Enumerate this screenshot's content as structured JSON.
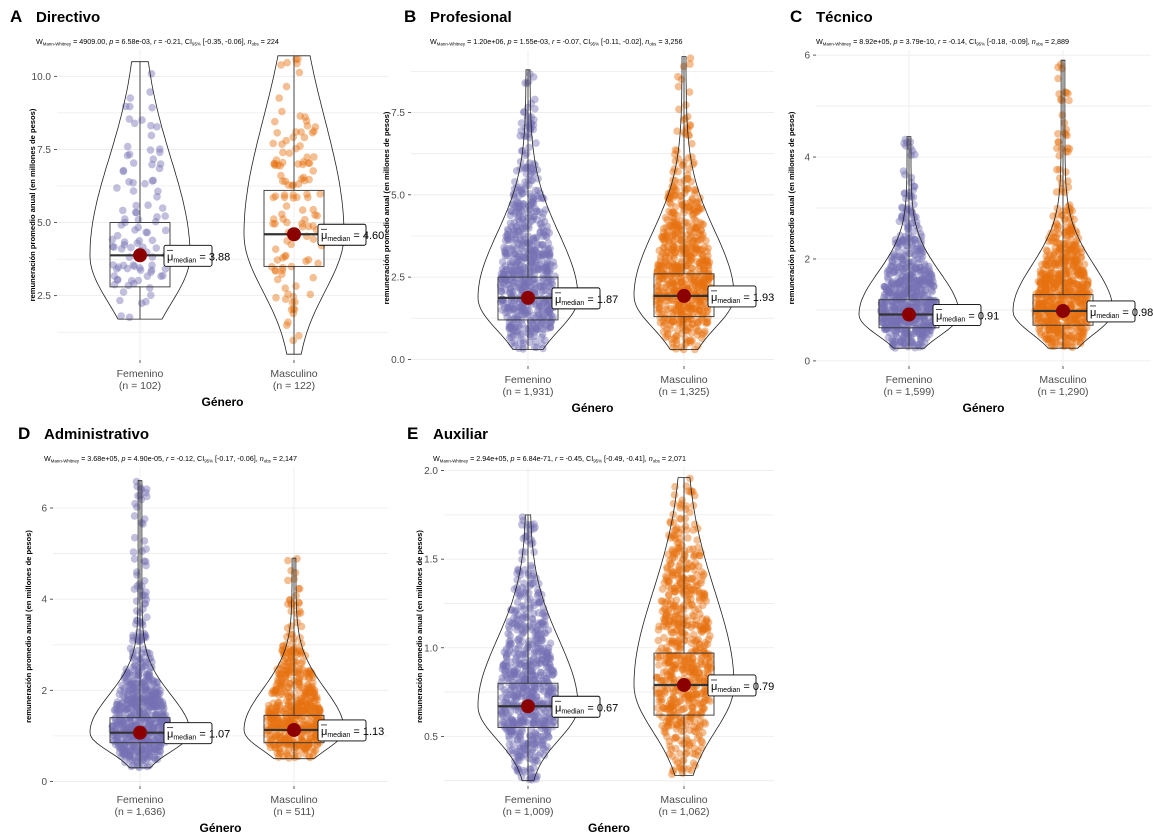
{
  "colors": {
    "femenino": "#7570B3",
    "masculino": "#E7700F",
    "median_point": "#8B0000",
    "grid": "#EBEBEB"
  },
  "chart_data": [
    {
      "type": "violin-box-scatter",
      "letter": "A",
      "title": "Directivo",
      "stats": {
        "prefix": "W",
        "test_sub": "Mann-Whitney",
        "W": "4909.00",
        "p": "6.58e-03",
        "r": "-0.21",
        "ci": "[-0.35, -0.06]",
        "n": "224"
      },
      "xlabel": "Género",
      "ylabel": "remuneración promedio anual (en millones de pesos)",
      "ylim": [
        0.3,
        10.9
      ],
      "yticks": [
        2.5,
        5.0,
        7.5,
        10.0
      ],
      "ytick_labels": [
        "2.5",
        "5.0",
        "7.5",
        "10.0"
      ],
      "groups": [
        {
          "name": "Femenino",
          "n_label": "(n = 102)",
          "n": 102,
          "median": 3.88,
          "median_label": "3.88",
          "q1": 2.8,
          "q3": 5.0,
          "min": 1.7,
          "max": 10.5
        },
        {
          "name": "Masculino",
          "n_label": "(n = 122)",
          "n": 122,
          "median": 4.6,
          "median_label": "4.60",
          "q1": 3.5,
          "q3": 6.1,
          "min": 0.5,
          "max": 10.7
        }
      ]
    },
    {
      "type": "violin-box-scatter",
      "letter": "B",
      "title": "Profesional",
      "stats": {
        "prefix": "W",
        "test_sub": "Mann-Whitney",
        "W": "1.20e+06",
        "p": "1.55e-03",
        "r": "-0.07",
        "ci": "[-0.11, -0.02]",
        "n": "3,256"
      },
      "xlabel": "Género",
      "ylabel": "remuneración promedio anual (en millones de pesos)",
      "ylim": [
        -0.2,
        9.4
      ],
      "yticks": [
        0.0,
        2.5,
        5.0,
        7.5
      ],
      "ytick_labels": [
        "0.0",
        "2.5",
        "5.0",
        "7.5"
      ],
      "groups": [
        {
          "name": "Femenino",
          "n_label": "(n = 1,931)",
          "n": 1931,
          "median": 1.87,
          "median_label": "1.87",
          "q1": 1.2,
          "q3": 2.5,
          "min": 0.3,
          "max": 8.8
        },
        {
          "name": "Masculino",
          "n_label": "(n = 1,325)",
          "n": 1325,
          "median": 1.93,
          "median_label": "1.93",
          "q1": 1.3,
          "q3": 2.6,
          "min": 0.3,
          "max": 9.2
        }
      ]
    },
    {
      "type": "violin-box-scatter",
      "letter": "C",
      "title": "Técnico",
      "stats": {
        "prefix": "W",
        "test_sub": "Mann-Whitney",
        "W": "8.92e+05",
        "p": "3.79e-10",
        "r": "-0.14",
        "ci": "[-0.18, -0.09]",
        "n": "2,889"
      },
      "xlabel": "Género",
      "ylabel": "remuneración promedio anual (en millones de pesos)",
      "ylim": [
        -0.1,
        6.1
      ],
      "yticks": [
        0,
        2,
        4,
        6
      ],
      "ytick_labels": [
        "0",
        "2",
        "4",
        "6"
      ],
      "groups": [
        {
          "name": "Femenino",
          "n_label": "(n = 1,599)",
          "n": 1599,
          "median": 0.91,
          "median_label": "0.91",
          "q1": 0.65,
          "q3": 1.2,
          "min": 0.25,
          "max": 4.4
        },
        {
          "name": "Masculino",
          "n_label": "(n = 1,290)",
          "n": 1290,
          "median": 0.98,
          "median_label": "0.98",
          "q1": 0.7,
          "q3": 1.3,
          "min": 0.25,
          "max": 5.9
        }
      ]
    },
    {
      "type": "violin-box-scatter",
      "letter": "D",
      "title": "Administrativo",
      "stats": {
        "prefix": "W",
        "test_sub": "Mann-Whitney",
        "W": "3.68e+05",
        "p": "4.90e-05",
        "r": "-0.12",
        "ci": "[-0.17, -0.06]",
        "n": "2,147"
      },
      "xlabel": "Género",
      "ylabel": "remuneración promedio anual (en millones de pesos)",
      "ylim": [
        -0.1,
        6.9
      ],
      "yticks": [
        0,
        2,
        4,
        6
      ],
      "ytick_labels": [
        "0",
        "2",
        "4",
        "6"
      ],
      "groups": [
        {
          "name": "Femenino",
          "n_label": "(n = 1,636)",
          "n": 1636,
          "median": 1.07,
          "median_label": "1.07",
          "q1": 0.85,
          "q3": 1.4,
          "min": 0.3,
          "max": 6.6
        },
        {
          "name": "Masculino",
          "n_label": "(n = 511)",
          "n": 511,
          "median": 1.13,
          "median_label": "1.13",
          "q1": 0.85,
          "q3": 1.45,
          "min": 0.5,
          "max": 4.9
        }
      ]
    },
    {
      "type": "violin-box-scatter",
      "letter": "E",
      "title": "Auxiliar",
      "stats": {
        "prefix": "W",
        "test_sub": "Mann-Whitney",
        "W": "2.94e+05",
        "p": "6.84e-71",
        "r": "-0.45",
        "ci": "[-0.49, -0.41]",
        "n": "2,071"
      },
      "xlabel": "Género",
      "ylabel": "remuneración promedio anual (en millones de pesos)",
      "ylim": [
        0.22,
        2.02
      ],
      "yticks": [
        0.5,
        1.0,
        1.5,
        2.0
      ],
      "ytick_labels": [
        "0.5",
        "1.0",
        "1.5",
        "2.0"
      ],
      "groups": [
        {
          "name": "Femenino",
          "n_label": "(n = 1,009)",
          "n": 1009,
          "median": 0.67,
          "median_label": "0.67",
          "q1": 0.55,
          "q3": 0.8,
          "min": 0.25,
          "max": 1.75
        },
        {
          "name": "Masculino",
          "n_label": "(n = 1,062)",
          "n": 1062,
          "median": 0.79,
          "median_label": "0.79",
          "q1": 0.62,
          "q3": 0.97,
          "min": 0.28,
          "max": 1.96
        }
      ]
    }
  ]
}
